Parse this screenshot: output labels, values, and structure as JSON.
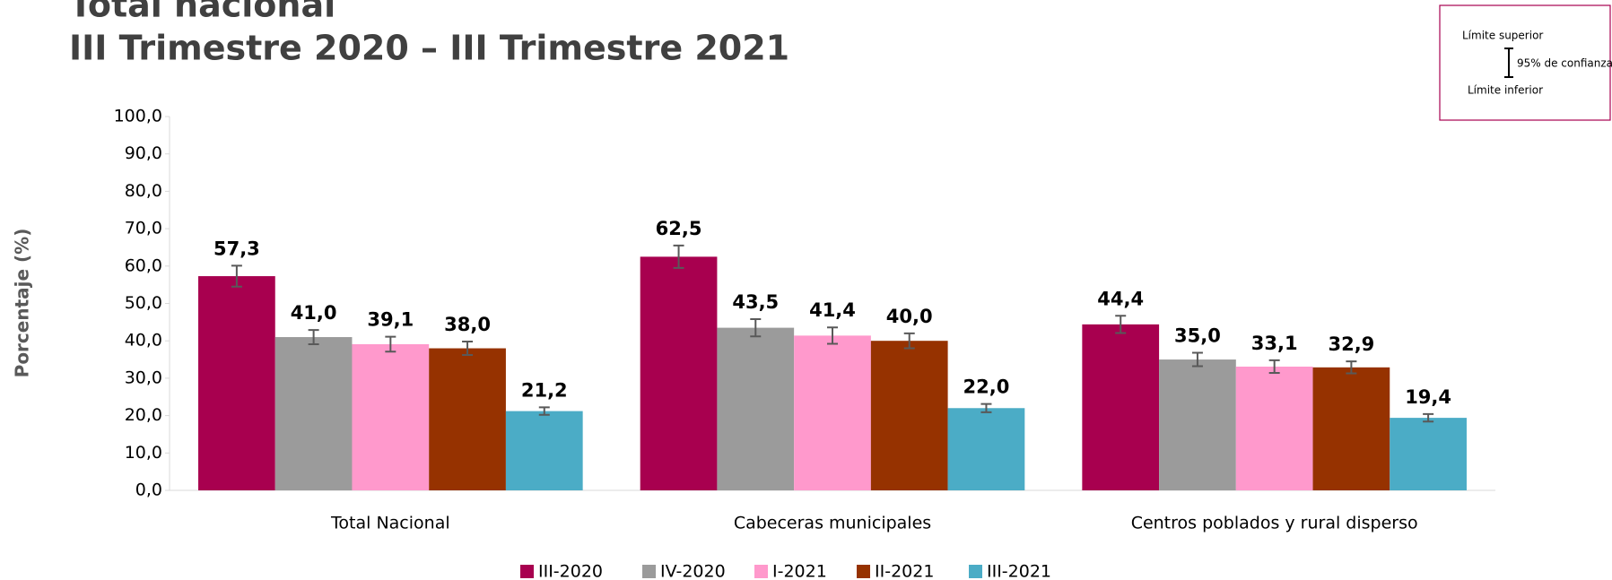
{
  "chart_data": {
    "type": "bar",
    "title": "Total nacional",
    "subtitle": "III Trimestre 2020 – III Trimestre 2021",
    "y_label": "Porcentaje (%)",
    "categories": [
      "Total Nacional",
      "Cabeceras municipales",
      "Centros poblados y rural disperso"
    ],
    "series": [
      {
        "name": "III-2020",
        "color": "#a8004f",
        "values": [
          57.3,
          62.5,
          44.4
        ],
        "value_labels": [
          "57,3",
          "62,5",
          "44,4"
        ],
        "errors": [
          2.8,
          3.0,
          2.3
        ]
      },
      {
        "name": "IV-2020",
        "color": "#9b9b9b",
        "values": [
          41.0,
          43.5,
          35.0
        ],
        "value_labels": [
          "41,0",
          "43,5",
          "35,0"
        ],
        "errors": [
          1.9,
          2.3,
          1.8
        ]
      },
      {
        "name": "I-2021",
        "color": "#ff99cc",
        "values": [
          39.1,
          41.4,
          33.1
        ],
        "value_labels": [
          "39,1",
          "41,4",
          "33,1"
        ],
        "errors": [
          2.0,
          2.2,
          1.7
        ]
      },
      {
        "name": "II-2021",
        "color": "#963200",
        "values": [
          38.0,
          40.0,
          32.9
        ],
        "value_labels": [
          "38,0",
          "40,0",
          "32,9"
        ],
        "errors": [
          1.8,
          2.0,
          1.6
        ]
      },
      {
        "name": "III-2021",
        "color": "#4bacc6",
        "values": [
          21.2,
          22.0,
          19.4
        ],
        "value_labels": [
          "21,2",
          "22,0",
          "19,4"
        ],
        "errors": [
          1.0,
          1.1,
          1.0
        ]
      }
    ],
    "ylim": [
      0,
      100
    ],
    "yticks": [
      {
        "value": 0,
        "label": "0,0"
      },
      {
        "value": 10,
        "label": "10,0"
      },
      {
        "value": 20,
        "label": "20,0"
      },
      {
        "value": 30,
        "label": "30,0"
      },
      {
        "value": 40,
        "label": "40,0"
      },
      {
        "value": 50,
        "label": "50,0"
      },
      {
        "value": 60,
        "label": "60,0"
      },
      {
        "value": 70,
        "label": "70,0"
      },
      {
        "value": 80,
        "label": "80,0"
      },
      {
        "value": 90,
        "label": "90,0"
      },
      {
        "value": 100,
        "label": "100,0"
      }
    ],
    "grid": false,
    "legend_note": {
      "upper": "Límite superior",
      "middle": "95% de confianza",
      "lower": "Límite inferior"
    }
  }
}
